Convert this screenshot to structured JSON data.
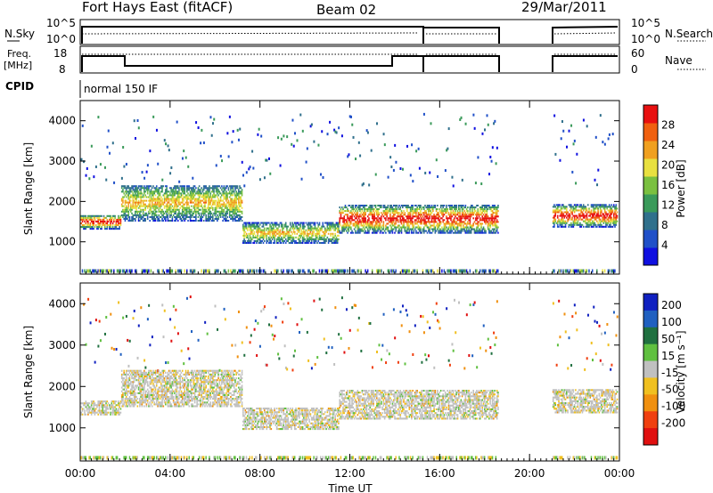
{
  "header": {
    "station": "Fort Hays East (fitACF)",
    "beam": "Beam 02",
    "date": "29/Mar/2011"
  },
  "status_panels": {
    "nsky_label": "N.Sky",
    "nsky_ticks": [
      "10^5",
      "10^0"
    ],
    "nsearch_label": "N.Search",
    "nsearch_ticks": [
      "10^5",
      "10^0"
    ],
    "freq_label_line1": "Freq.",
    "freq_label_line2": "[MHz]",
    "freq_ticks": [
      "18",
      "8"
    ],
    "nave_label": "Nave",
    "nave_ticks": [
      "60",
      "0"
    ],
    "cpid_label": "CPID",
    "cpid_value": "normal 150 IF"
  },
  "chart_data": [
    {
      "type": "heatmap",
      "name": "power",
      "xlabel": "",
      "ylabel": "Slant Range [km]",
      "y_ticks": [
        "1000",
        "2000",
        "3000",
        "4000"
      ],
      "ylim": [
        200,
        4500
      ],
      "xlim_hours": [
        0,
        24
      ],
      "colorbar": {
        "label": "Power [dB]",
        "ticks": [
          "4",
          "8",
          "12",
          "16",
          "20",
          "24",
          "28"
        ],
        "colors": [
          "#1010e0",
          "#2050c8",
          "#30708c",
          "#3a9a5a",
          "#7ac040",
          "#e8e040",
          "#f0a020",
          "#f06010",
          "#e81010"
        ]
      },
      "data_gaps_hours": [
        [
          18.6,
          21.0
        ],
        [
          23.9,
          24.0
        ]
      ],
      "bands": [
        {
          "t0": 0.0,
          "t1": 1.8,
          "r0": 1300,
          "r1": 1650,
          "level": "high"
        },
        {
          "t0": 1.8,
          "t1": 7.2,
          "r0": 1500,
          "r1": 2400,
          "level": "mid"
        },
        {
          "t0": 7.2,
          "t1": 11.5,
          "r0": 950,
          "r1": 1450,
          "level": "mid"
        },
        {
          "t0": 11.5,
          "t1": 14.0,
          "r0": 1200,
          "r1": 1900,
          "level": "high"
        },
        {
          "t0": 14.0,
          "t1": 18.6,
          "r0": 1200,
          "r1": 1900,
          "level": "high"
        },
        {
          "t0": 21.0,
          "t1": 24.0,
          "r0": 1350,
          "r1": 1900,
          "level": "high"
        }
      ]
    },
    {
      "type": "heatmap",
      "name": "velocity",
      "xlabel": "Time UT",
      "ylabel": "Slant Range [km]",
      "x_ticks": [
        "00:00",
        "04:00",
        "08:00",
        "12:00",
        "16:00",
        "20:00",
        "00:00"
      ],
      "y_ticks": [
        "1000",
        "2000",
        "3000",
        "4000"
      ],
      "ylim": [
        200,
        4500
      ],
      "xlim_hours": [
        0,
        24
      ],
      "colorbar": {
        "label": "Velocity [m s⁻¹]",
        "ticks": [
          "200",
          "100",
          "50",
          "15",
          "-15",
          "-50",
          "-100",
          "-200"
        ],
        "colors": [
          "#1020c0",
          "#2060c0",
          "#207040",
          "#60c040",
          "#c0c0c0",
          "#f0c020",
          "#f09010",
          "#f04010",
          "#e01010"
        ]
      },
      "data_gaps_hours": [
        [
          18.6,
          21.0
        ],
        [
          23.9,
          24.0
        ]
      ]
    }
  ]
}
